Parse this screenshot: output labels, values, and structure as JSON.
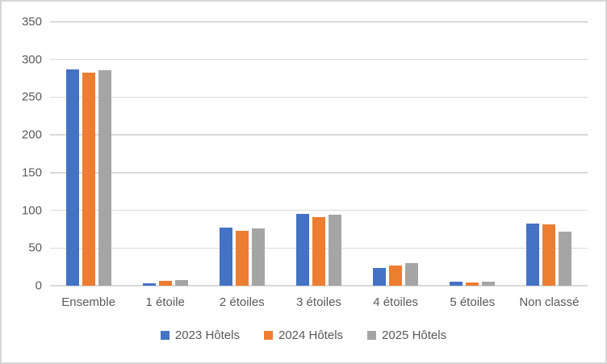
{
  "chart_data": {
    "type": "bar",
    "title": "",
    "categories": [
      "Ensemble",
      "1 étoile",
      "2 étoiles",
      "3 étoiles",
      "4 étoiles",
      "5 étoiles",
      "Non classé"
    ],
    "series": [
      {
        "name": "2023 Hôtels",
        "color": "#4472C4",
        "values": [
          287,
          3,
          77,
          95,
          24,
          5,
          82
        ]
      },
      {
        "name": "2024 Hôtels",
        "color": "#ED7D31",
        "values": [
          283,
          6,
          73,
          91,
          27,
          4,
          81
        ]
      },
      {
        "name": "2025 Hôtels",
        "color": "#A5A5A5",
        "values": [
          286,
          8,
          76,
          94,
          30,
          5,
          72
        ]
      }
    ],
    "ylim": [
      0,
      350
    ],
    "ytick_step": 50,
    "ytick_labels": [
      "0",
      "50",
      "100",
      "150",
      "200",
      "250",
      "300",
      "350"
    ],
    "grid": true,
    "legend_position": "bottom",
    "gridline_color": "#D9D9D9",
    "axis_text_color": "#595959"
  }
}
